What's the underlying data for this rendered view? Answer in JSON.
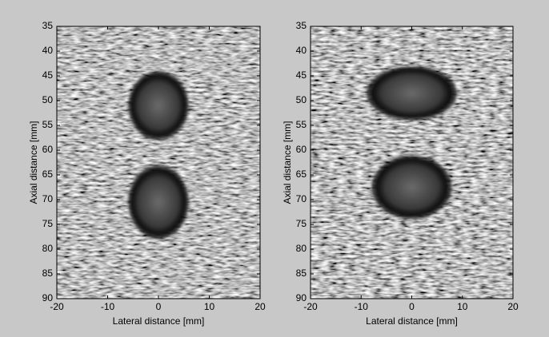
{
  "chart_data": [
    {
      "type": "image",
      "xlabel": "Lateral distance [mm]",
      "ylabel": "Axial distance [mm]",
      "xlim": [
        -20,
        20
      ],
      "ylim": [
        35,
        90
      ],
      "y_reversed": true,
      "xticks": [
        -20,
        -10,
        0,
        10,
        20
      ],
      "yticks": [
        35,
        40,
        45,
        50,
        55,
        60,
        65,
        70,
        75,
        80,
        85,
        90
      ],
      "lesions": [
        {
          "x": 0,
          "y": 51,
          "rx": 6,
          "ry": 7
        },
        {
          "x": 0,
          "y": 70.5,
          "rx": 6,
          "ry": 7.5
        }
      ]
    },
    {
      "type": "image",
      "xlabel": "Lateral distance [mm]",
      "ylabel": "Axial distance [mm]",
      "xlim": [
        -20,
        20
      ],
      "ylim": [
        35,
        90
      ],
      "y_reversed": true,
      "xticks": [
        -20,
        -10,
        0,
        10,
        20
      ],
      "yticks": [
        35,
        40,
        45,
        50,
        55,
        60,
        65,
        70,
        75,
        80,
        85,
        90
      ],
      "lesions": [
        {
          "x": 0,
          "y": 48.5,
          "rx": 9,
          "ry": 5.5
        },
        {
          "x": 0,
          "y": 67.5,
          "rx": 8,
          "ry": 6.5
        }
      ]
    }
  ]
}
